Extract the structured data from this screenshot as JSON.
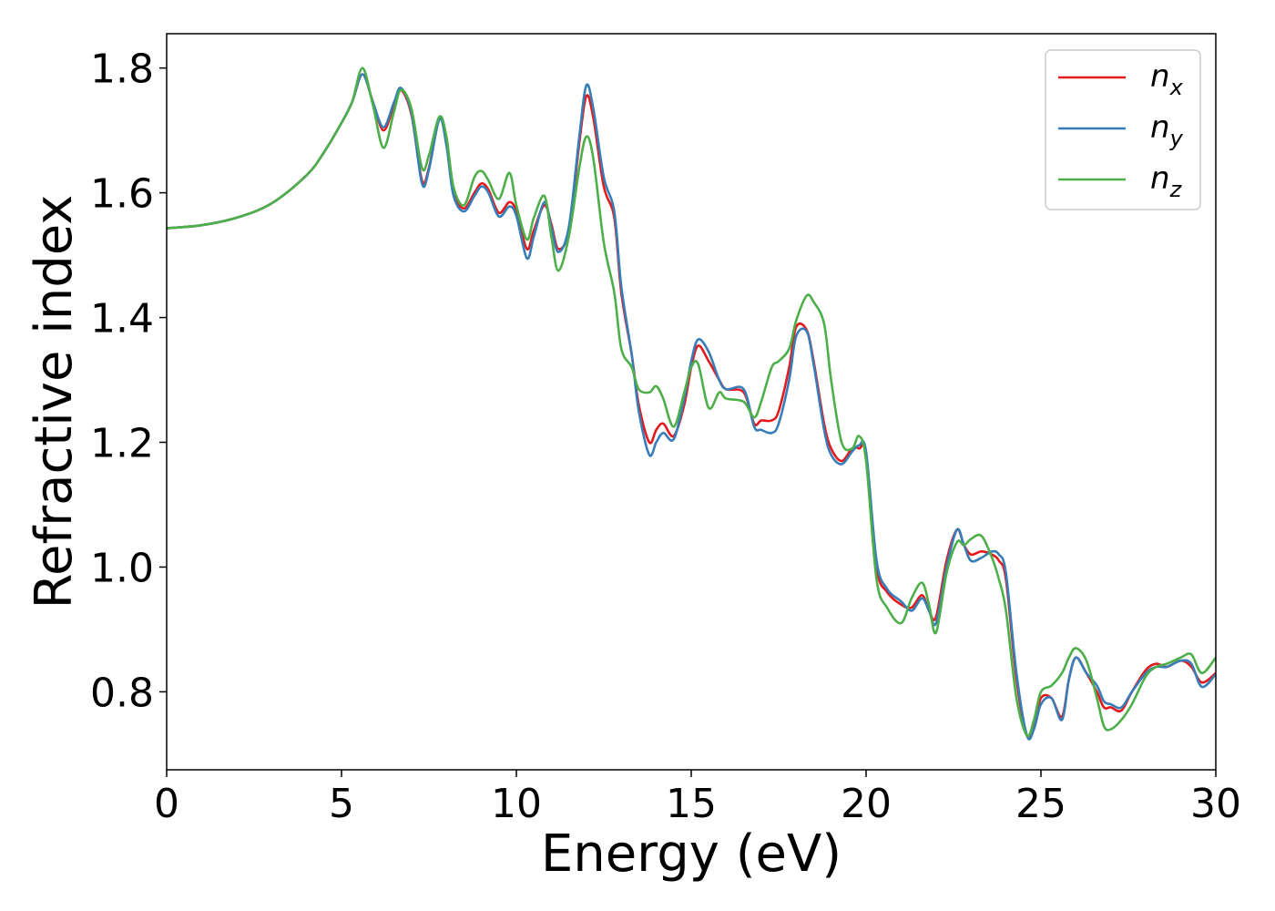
{
  "chart_data": {
    "type": "line",
    "xlabel": "Energy (eV)",
    "ylabel": "Refractive index",
    "xlim": [
      0,
      30
    ],
    "ylim": [
      0.675,
      1.855
    ],
    "xticks": [
      0,
      5,
      10,
      15,
      20,
      25,
      30
    ],
    "xtick_labels": [
      "0",
      "5",
      "10",
      "15",
      "20",
      "25",
      "30"
    ],
    "yticks": [
      0.8,
      1.0,
      1.2,
      1.4,
      1.6,
      1.8
    ],
    "ytick_labels": [
      "0.8",
      "1.0",
      "1.2",
      "1.4",
      "1.6",
      "1.8"
    ],
    "grid": false,
    "legend_position": "top-right",
    "series": [
      {
        "name": "n",
        "subscript": "x",
        "color": "#e41a1c",
        "x": [
          0,
          1,
          2,
          3,
          4,
          4.5,
          5,
          5.3,
          5.6,
          5.9,
          6.2,
          6.5,
          6.7,
          7.0,
          7.3,
          7.5,
          7.8,
          8.0,
          8.2,
          8.5,
          8.8,
          9.0,
          9.2,
          9.5,
          9.8,
          10.0,
          10.3,
          10.5,
          10.8,
          11.0,
          11.2,
          11.5,
          11.8,
          12.0,
          12.2,
          12.5,
          12.8,
          13.0,
          13.3,
          13.5,
          13.8,
          14.0,
          14.2,
          14.5,
          14.8,
          15.0,
          15.2,
          15.5,
          15.8,
          16.0,
          16.5,
          16.8,
          17.0,
          17.3,
          17.5,
          17.8,
          18.0,
          18.3,
          18.5,
          18.8,
          19.0,
          19.3,
          19.6,
          19.8,
          20.0,
          20.3,
          20.6,
          21.0,
          21.3,
          21.6,
          21.8,
          22.0,
          22.3,
          22.6,
          22.8,
          23.0,
          23.3,
          23.6,
          23.8,
          24.0,
          24.3,
          24.6,
          24.8,
          25.0,
          25.3,
          25.6,
          25.8,
          26.0,
          26.3,
          26.6,
          26.8,
          27.0,
          27.3,
          27.6,
          28.0,
          28.3,
          28.6,
          29.0,
          29.3,
          29.6,
          30.0
        ],
        "y": [
          1.543,
          1.548,
          1.56,
          1.583,
          1.628,
          1.665,
          1.712,
          1.745,
          1.79,
          1.745,
          1.7,
          1.74,
          1.765,
          1.725,
          1.62,
          1.64,
          1.72,
          1.68,
          1.6,
          1.575,
          1.6,
          1.615,
          1.605,
          1.568,
          1.585,
          1.57,
          1.51,
          1.54,
          1.58,
          1.55,
          1.51,
          1.54,
          1.68,
          1.755,
          1.72,
          1.61,
          1.56,
          1.44,
          1.34,
          1.26,
          1.2,
          1.22,
          1.23,
          1.21,
          1.26,
          1.32,
          1.355,
          1.33,
          1.3,
          1.285,
          1.28,
          1.23,
          1.235,
          1.235,
          1.25,
          1.32,
          1.385,
          1.38,
          1.33,
          1.23,
          1.19,
          1.17,
          1.19,
          1.19,
          1.18,
          1.0,
          0.96,
          0.94,
          0.935,
          0.955,
          0.93,
          0.92,
          1.01,
          1.06,
          1.035,
          1.02,
          1.025,
          1.02,
          1.01,
          0.98,
          0.82,
          0.73,
          0.745,
          0.79,
          0.79,
          0.76,
          0.82,
          0.855,
          0.83,
          0.8,
          0.775,
          0.775,
          0.77,
          0.8,
          0.835,
          0.845,
          0.84,
          0.85,
          0.84,
          0.815,
          0.83
        ]
      },
      {
        "name": "n",
        "subscript": "y",
        "color": "#377eb8",
        "x": [
          0,
          1,
          2,
          3,
          4,
          4.5,
          5,
          5.3,
          5.6,
          5.9,
          6.2,
          6.5,
          6.7,
          7.0,
          7.3,
          7.5,
          7.8,
          8.0,
          8.2,
          8.5,
          8.8,
          9.0,
          9.2,
          9.5,
          9.8,
          10.0,
          10.3,
          10.5,
          10.8,
          11.0,
          11.2,
          11.5,
          11.8,
          12.0,
          12.2,
          12.5,
          12.8,
          13.0,
          13.3,
          13.5,
          13.8,
          14.0,
          14.2,
          14.5,
          14.8,
          15.0,
          15.2,
          15.5,
          15.8,
          16.0,
          16.5,
          16.8,
          17.0,
          17.3,
          17.5,
          17.8,
          18.0,
          18.3,
          18.5,
          18.8,
          19.0,
          19.3,
          19.6,
          19.8,
          20.0,
          20.3,
          20.6,
          21.0,
          21.3,
          21.6,
          21.8,
          22.0,
          22.3,
          22.6,
          22.8,
          23.0,
          23.3,
          23.6,
          23.8,
          24.0,
          24.3,
          24.6,
          24.8,
          25.0,
          25.3,
          25.6,
          25.8,
          26.0,
          26.3,
          26.6,
          26.8,
          27.0,
          27.3,
          27.6,
          28.0,
          28.3,
          28.6,
          29.0,
          29.3,
          29.6,
          30.0
        ],
        "y": [
          1.543,
          1.548,
          1.56,
          1.583,
          1.628,
          1.665,
          1.712,
          1.745,
          1.79,
          1.745,
          1.705,
          1.745,
          1.768,
          1.728,
          1.615,
          1.637,
          1.718,
          1.676,
          1.596,
          1.57,
          1.595,
          1.61,
          1.6,
          1.562,
          1.578,
          1.563,
          1.495,
          1.53,
          1.585,
          1.545,
          1.505,
          1.545,
          1.69,
          1.772,
          1.735,
          1.625,
          1.57,
          1.45,
          1.34,
          1.25,
          1.18,
          1.2,
          1.215,
          1.205,
          1.27,
          1.33,
          1.365,
          1.345,
          1.3,
          1.285,
          1.285,
          1.225,
          1.22,
          1.215,
          1.23,
          1.3,
          1.37,
          1.378,
          1.325,
          1.22,
          1.18,
          1.165,
          1.185,
          1.195,
          1.185,
          1.01,
          0.965,
          0.945,
          0.93,
          0.95,
          0.93,
          0.91,
          1.0,
          1.06,
          1.035,
          1.01,
          1.015,
          1.025,
          1.02,
          0.99,
          0.83,
          0.73,
          0.74,
          0.78,
          0.79,
          0.755,
          0.82,
          0.855,
          0.83,
          0.81,
          0.785,
          0.78,
          0.775,
          0.8,
          0.83,
          0.84,
          0.84,
          0.85,
          0.845,
          0.808,
          0.828
        ]
      },
      {
        "name": "n",
        "subscript": "z",
        "color": "#4daf4a",
        "x": [
          0,
          1,
          2,
          3,
          4,
          4.5,
          5,
          5.3,
          5.6,
          5.9,
          6.2,
          6.5,
          6.7,
          7.0,
          7.3,
          7.5,
          7.8,
          8.0,
          8.2,
          8.5,
          8.8,
          9.0,
          9.2,
          9.5,
          9.8,
          10.0,
          10.3,
          10.5,
          10.8,
          11.0,
          11.2,
          11.5,
          11.8,
          12.0,
          12.2,
          12.5,
          12.8,
          13.0,
          13.3,
          13.5,
          13.8,
          14.0,
          14.2,
          14.5,
          14.8,
          15.0,
          15.2,
          15.5,
          15.8,
          16.0,
          16.5,
          16.8,
          17.0,
          17.3,
          17.5,
          17.8,
          18.0,
          18.3,
          18.5,
          18.8,
          19.0,
          19.3,
          19.6,
          19.8,
          20.0,
          20.3,
          20.6,
          21.0,
          21.3,
          21.6,
          21.8,
          22.0,
          22.3,
          22.6,
          22.8,
          23.0,
          23.3,
          23.6,
          23.8,
          24.0,
          24.3,
          24.6,
          24.8,
          25.0,
          25.3,
          25.6,
          25.8,
          26.0,
          26.3,
          26.6,
          26.8,
          27.0,
          27.3,
          27.6,
          28.0,
          28.3,
          28.6,
          29.0,
          29.3,
          29.6,
          30.0
        ],
        "y": [
          1.543,
          1.548,
          1.56,
          1.583,
          1.628,
          1.665,
          1.712,
          1.745,
          1.8,
          1.74,
          1.672,
          1.73,
          1.765,
          1.735,
          1.64,
          1.66,
          1.722,
          1.69,
          1.61,
          1.58,
          1.625,
          1.635,
          1.62,
          1.59,
          1.632,
          1.58,
          1.525,
          1.56,
          1.595,
          1.53,
          1.475,
          1.53,
          1.64,
          1.69,
          1.655,
          1.52,
          1.44,
          1.35,
          1.32,
          1.285,
          1.28,
          1.29,
          1.27,
          1.225,
          1.28,
          1.32,
          1.325,
          1.255,
          1.28,
          1.27,
          1.265,
          1.24,
          1.265,
          1.32,
          1.33,
          1.35,
          1.395,
          1.435,
          1.425,
          1.39,
          1.3,
          1.2,
          1.19,
          1.21,
          1.17,
          0.98,
          0.935,
          0.91,
          0.95,
          0.975,
          0.94,
          0.895,
          0.99,
          1.04,
          1.035,
          1.045,
          1.05,
          1.015,
          0.98,
          0.93,
          0.79,
          0.73,
          0.755,
          0.8,
          0.81,
          0.83,
          0.855,
          0.87,
          0.85,
          0.79,
          0.745,
          0.74,
          0.755,
          0.78,
          0.825,
          0.84,
          0.845,
          0.855,
          0.86,
          0.83,
          0.855
        ]
      }
    ]
  }
}
